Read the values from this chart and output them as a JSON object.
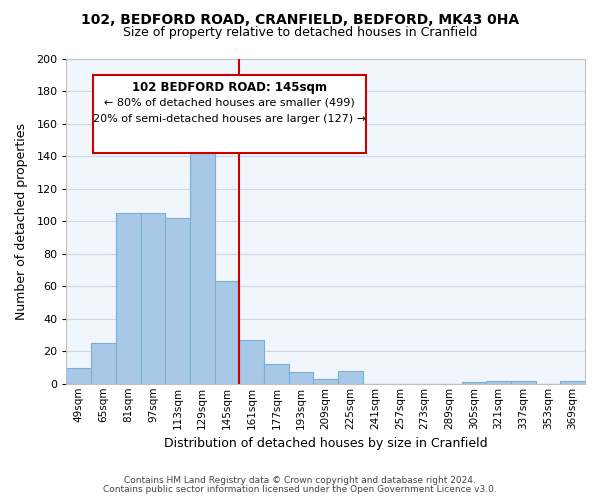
{
  "title1": "102, BEDFORD ROAD, CRANFIELD, BEDFORD, MK43 0HA",
  "title2": "Size of property relative to detached houses in Cranfield",
  "xlabel": "Distribution of detached houses by size in Cranfield",
  "ylabel": "Number of detached properties",
  "bin_labels": [
    "49sqm",
    "65sqm",
    "81sqm",
    "97sqm",
    "113sqm",
    "129sqm",
    "145sqm",
    "161sqm",
    "177sqm",
    "193sqm",
    "209sqm",
    "225sqm",
    "241sqm",
    "257sqm",
    "273sqm",
    "289sqm",
    "305sqm",
    "321sqm",
    "337sqm",
    "353sqm",
    "369sqm"
  ],
  "bar_values": [
    10,
    25,
    105,
    105,
    102,
    152,
    63,
    27,
    12,
    7,
    3,
    8,
    0,
    0,
    0,
    0,
    1,
    2,
    2,
    0,
    2
  ],
  "bar_color": "#a8c8e8",
  "bar_edge_color": "#7aafd4",
  "highlight_bin_index": 6,
  "highlight_line_color": "#cc0000",
  "ylim": [
    0,
    200
  ],
  "yticks": [
    0,
    20,
    40,
    60,
    80,
    100,
    120,
    140,
    160,
    180,
    200
  ],
  "annotation_title": "102 BEDFORD ROAD: 145sqm",
  "annotation_line1": "← 80% of detached houses are smaller (499)",
  "annotation_line2": "20% of semi-detached houses are larger (127) →",
  "annotation_box_color": "#ffffff",
  "annotation_box_edge": "#cc0000",
  "footer1": "Contains HM Land Registry data © Crown copyright and database right 2024.",
  "footer2": "Contains public sector information licensed under the Open Government Licence v3.0."
}
